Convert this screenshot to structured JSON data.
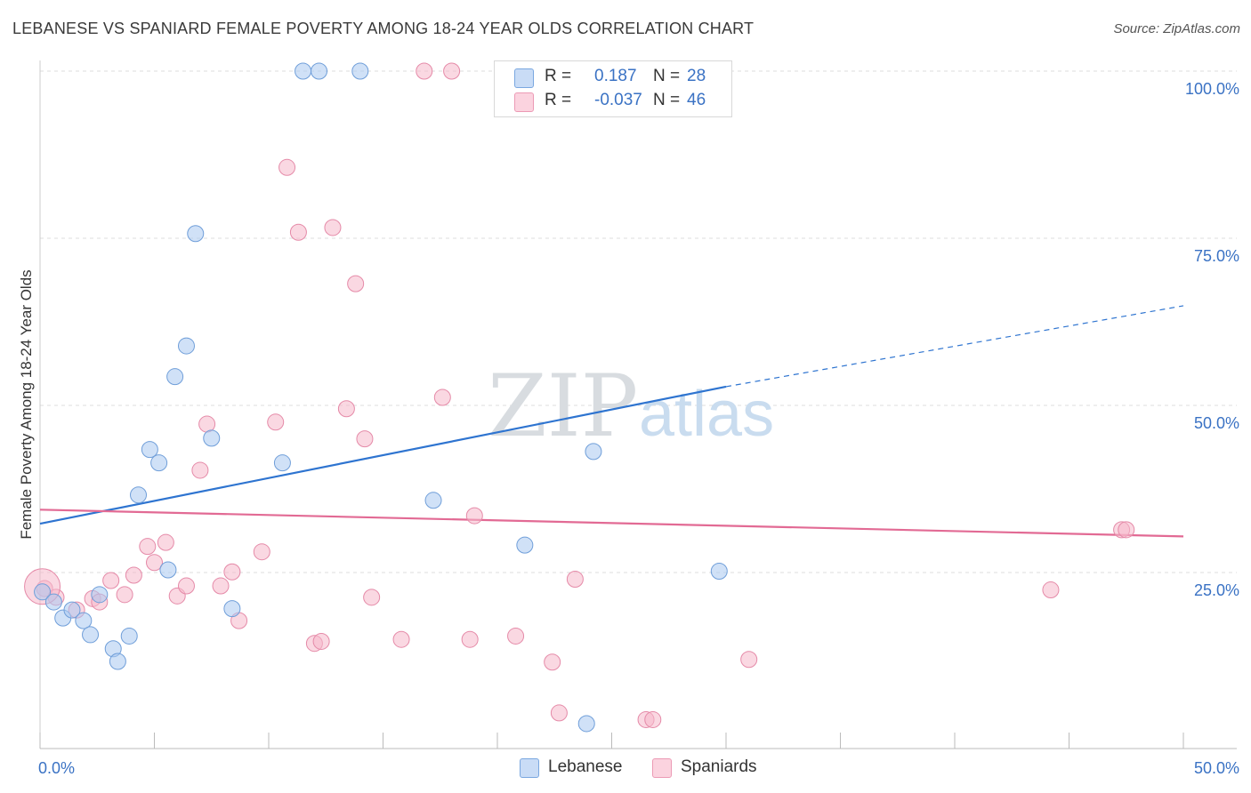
{
  "title": "LEBANESE VS SPANIARD FEMALE POVERTY AMONG 18-24 YEAR OLDS CORRELATION CHART",
  "source": "Source: ZipAtlas.com",
  "watermark": {
    "zip": "ZIP",
    "atlas": "atlas"
  },
  "legend": {
    "r_label": "R =",
    "n_label": "N =",
    "rows": [
      {
        "r": "0.187",
        "n": "28",
        "color": "#a9c8f0"
      },
      {
        "r": "-0.037",
        "n": "46",
        "color": "#f6b8cb"
      }
    ]
  },
  "bottom_legend": [
    {
      "label": "Lebanese",
      "color": "#a9c8f0"
    },
    {
      "label": "Spaniards",
      "color": "#f6b8cb"
    }
  ],
  "colors": {
    "blue_point": "#a9c8f0",
    "blue_stroke": "#6f9ed9",
    "blue_line": "#2e74d0",
    "pink_point": "#f6b8cb",
    "pink_stroke": "#e58aa8",
    "pink_line": "#e26a94",
    "tick_label": "#3a72c4",
    "grid": "#dddddd"
  },
  "chart_data": {
    "type": "scatter",
    "title": "LEBANESE VS SPANIARD FEMALE POVERTY AMONG 18-24 YEAR OLDS CORRELATION CHART",
    "xlabel": "",
    "ylabel": "Female Poverty Among 18-24 Year Olds",
    "xlim": [
      0,
      50
    ],
    "ylim": [
      0,
      105
    ],
    "x_tick_labels": [
      {
        "value": 0,
        "label": "0.0%"
      },
      {
        "value": 50,
        "label": "50.0%"
      }
    ],
    "y_tick_labels": [
      {
        "value": 25,
        "label": "25.0%"
      },
      {
        "value": 50,
        "label": "50.0%"
      },
      {
        "value": 75,
        "label": "75.0%"
      },
      {
        "value": 100,
        "label": "100.0%"
      }
    ],
    "grid": "horizontal dashed",
    "legend_position": "top-center",
    "series": [
      {
        "name": "Lebanese",
        "r": 0.187,
        "n": 28,
        "trend": {
          "x": [
            0,
            30
          ],
          "y": [
            32.3,
            52.8
          ],
          "dashed_to": {
            "x": 50,
            "y": 64.9
          }
        },
        "points": [
          [
            0.1,
            22.1
          ],
          [
            0.6,
            20.6
          ],
          [
            1.0,
            18.2
          ],
          [
            1.4,
            19.4
          ],
          [
            1.9,
            17.8
          ],
          [
            2.2,
            15.7
          ],
          [
            2.6,
            21.7
          ],
          [
            3.2,
            13.6
          ],
          [
            3.4,
            11.7
          ],
          [
            3.9,
            15.5
          ],
          [
            4.3,
            36.6
          ],
          [
            4.8,
            43.4
          ],
          [
            5.2,
            41.4
          ],
          [
            5.6,
            25.4
          ],
          [
            5.9,
            54.3
          ],
          [
            6.4,
            58.9
          ],
          [
            6.8,
            75.7
          ],
          [
            7.5,
            45.1
          ],
          [
            8.4,
            19.6
          ],
          [
            10.6,
            41.4
          ],
          [
            11.5,
            100.0
          ],
          [
            12.2,
            100.0
          ],
          [
            14.0,
            100.0
          ],
          [
            17.2,
            35.8
          ],
          [
            21.2,
            29.1
          ],
          [
            24.2,
            43.1
          ],
          [
            29.7,
            25.2
          ],
          [
            23.9,
            2.4
          ]
        ]
      },
      {
        "name": "Spaniards",
        "r": -0.037,
        "n": 46,
        "trend": {
          "x": [
            0,
            50
          ],
          "y": [
            34.4,
            30.4
          ]
        },
        "points": [
          [
            0.2,
            22.6
          ],
          [
            0.7,
            21.3
          ],
          [
            1.6,
            19.4
          ],
          [
            2.3,
            21.1
          ],
          [
            2.6,
            20.6
          ],
          [
            3.1,
            23.8
          ],
          [
            3.7,
            21.7
          ],
          [
            4.1,
            24.6
          ],
          [
            4.7,
            28.9
          ],
          [
            5.0,
            26.5
          ],
          [
            5.5,
            29.5
          ],
          [
            6.0,
            21.5
          ],
          [
            6.4,
            23.0
          ],
          [
            7.0,
            40.3
          ],
          [
            7.3,
            47.2
          ],
          [
            7.9,
            23.0
          ],
          [
            8.4,
            25.1
          ],
          [
            8.7,
            17.8
          ],
          [
            9.7,
            28.1
          ],
          [
            10.3,
            47.5
          ],
          [
            10.8,
            85.6
          ],
          [
            11.3,
            75.9
          ],
          [
            12.0,
            14.4
          ],
          [
            12.3,
            14.7
          ],
          [
            12.8,
            76.6
          ],
          [
            13.4,
            49.5
          ],
          [
            13.8,
            68.2
          ],
          [
            14.2,
            45.0
          ],
          [
            14.5,
            21.3
          ],
          [
            15.8,
            15.0
          ],
          [
            17.6,
            51.2
          ],
          [
            18.0,
            100.0
          ],
          [
            16.8,
            100.0
          ],
          [
            18.8,
            15.0
          ],
          [
            19.0,
            33.5
          ],
          [
            20.8,
            15.5
          ],
          [
            22.4,
            11.6
          ],
          [
            22.7,
            4.0
          ],
          [
            23.4,
            24.0
          ],
          [
            26.5,
            3.0
          ],
          [
            26.8,
            3.0
          ],
          [
            31.0,
            12.0
          ],
          [
            44.2,
            22.4
          ],
          [
            47.3,
            31.4
          ],
          [
            47.5,
            31.4
          ],
          [
            0.1,
            22.9
          ]
        ]
      }
    ]
  }
}
